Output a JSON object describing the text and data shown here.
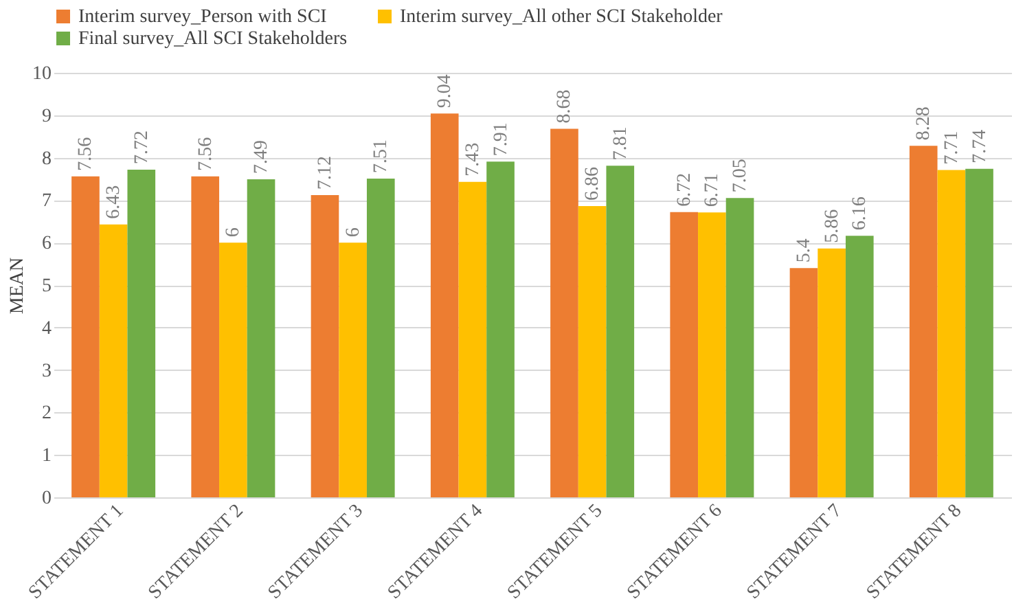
{
  "chart_data": {
    "type": "bar",
    "ylabel": "MEAN",
    "categories": [
      "STATEMENT 1",
      "STATEMENT 2",
      "STATEMENT 3",
      "STATEMENT 4",
      "STATEMENT 5",
      "STATEMENT 6",
      "STATEMENT 7",
      "STATEMENT 8"
    ],
    "series": [
      {
        "name": "Interim survey_Person with SCI",
        "color": "#ed7d31",
        "values": [
          7.56,
          7.56,
          7.12,
          9.04,
          8.68,
          6.72,
          5.4,
          8.28
        ]
      },
      {
        "name": "Interim survey_All other SCI Stakeholder",
        "color": "#ffc000",
        "values": [
          6.43,
          6,
          6,
          7.43,
          6.86,
          6.71,
          5.86,
          7.71
        ]
      },
      {
        "name": "Final survey_All SCI Stakeholders",
        "color": "#70ad47",
        "values": [
          7.72,
          7.49,
          7.51,
          7.91,
          7.81,
          7.05,
          6.16,
          7.74
        ]
      }
    ],
    "ylim": [
      0,
      10
    ],
    "yticks": [
      0,
      1,
      2,
      3,
      4,
      5,
      6,
      7,
      8,
      9,
      10
    ],
    "grid": "y",
    "legend": "top",
    "data_labels": true
  }
}
